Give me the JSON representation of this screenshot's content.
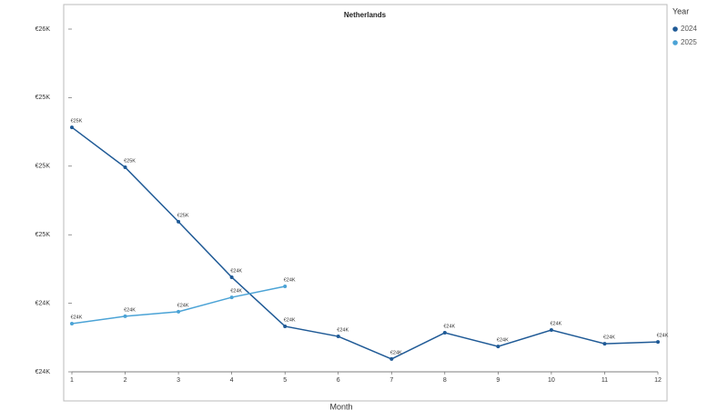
{
  "chart_data": {
    "type": "line",
    "title": "Netherlands",
    "x_label": "Month",
    "legend_title": "Year",
    "categories": [
      "1",
      "2",
      "3",
      "4",
      "5",
      "6",
      "7",
      "8",
      "9",
      "10",
      "11",
      "12"
    ],
    "series": [
      {
        "name": "2024",
        "color": "#1f5a96",
        "values": [
          25070,
          24895,
          24657,
          24414,
          24199,
          24155,
          24056,
          24171,
          24111,
          24183,
          24123,
          24131
        ],
        "value_labels": [
          "€25K",
          "€25K",
          "€25K",
          "€24K",
          "€24K",
          "€24K",
          "€24K",
          "€24K",
          "€24K",
          "€24K",
          "€24K",
          "€24K"
        ]
      },
      {
        "name": "2025",
        "color": "#4ba3d6",
        "values": [
          24211,
          24243,
          24263,
          24326,
          24374,
          null,
          null,
          null,
          null,
          null,
          null,
          null
        ],
        "value_labels": [
          "€24K",
          "€24K",
          "€24K",
          "€24K",
          "€24K",
          null,
          null,
          null,
          null,
          null,
          null,
          null
        ]
      }
    ],
    "ylim": [
      24000,
      25500
    ],
    "yticks": [
      {
        "value": 24000,
        "label": "€24K"
      },
      {
        "value": 24300,
        "label": "€24K"
      },
      {
        "value": 24600,
        "label": "€25K"
      },
      {
        "value": 24900,
        "label": "€25K"
      },
      {
        "value": 25200,
        "label": "€25K"
      },
      {
        "value": 25500,
        "label": "€26K"
      }
    ],
    "grid": false,
    "legend": "right"
  }
}
